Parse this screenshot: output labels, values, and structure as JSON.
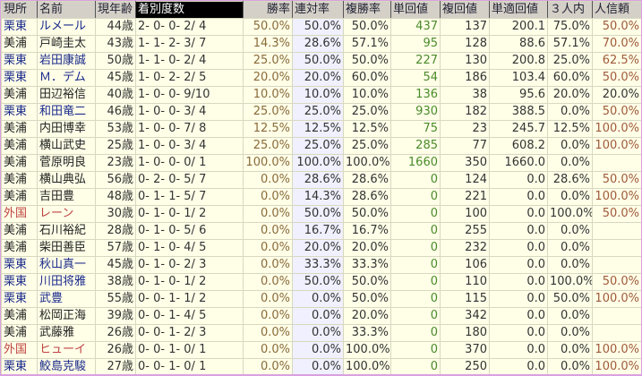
{
  "headers": [
    "現所",
    "名前",
    "現年齢",
    "着別度数",
    "勝率",
    "連対率",
    "複勝率",
    "単回値",
    "複回値",
    "単適回値",
    "３人内",
    "人信頼"
  ],
  "colors": {
    "ritto": "#1a2a8a",
    "miho": "#222222",
    "gaikoku": "#c04040",
    "header_bg": "#d4d0c8",
    "row_bg": "#ffffe8",
    "rentai_bg": "#f0f0ff"
  },
  "rows": [
    [
      "栗東",
      "ルメール",
      "44歳",
      "2- 0- 0- 2/ 4",
      "50.0%",
      "50.0%",
      "50.0%",
      "437",
      "137",
      "200.1",
      "75.0%",
      "50.0%"
    ],
    [
      "美浦",
      "戸崎圭太",
      "43歳",
      "1- 1- 2- 3/ 7",
      "14.3%",
      "28.6%",
      "57.1%",
      "95",
      "128",
      "88.6",
      "57.1%",
      "70.0%"
    ],
    [
      "栗東",
      "岩田康誠",
      "50歳",
      "1- 1- 0- 2/ 4",
      "25.0%",
      "50.0%",
      "50.0%",
      "227",
      "130",
      "200.8",
      "25.0%",
      "62.5%"
    ],
    [
      "栗東",
      "Ｍ．デム",
      "45歳",
      "1- 0- 2- 2/ 5",
      "20.0%",
      "20.0%",
      "60.0%",
      "54",
      "186",
      "103.4",
      "60.0%",
      "50.0%"
    ],
    [
      "美浦",
      "田辺裕信",
      "40歳",
      "1- 0- 0- 9/10",
      "10.0%",
      "10.0%",
      "10.0%",
      "136",
      "38",
      "95.6",
      "20.0%",
      "20.0%"
    ],
    [
      "栗東",
      "和田竜二",
      "46歳",
      "1- 0- 0- 3/ 4",
      "25.0%",
      "25.0%",
      "25.0%",
      "930",
      "182",
      "388.5",
      "0.0%",
      "50.0%"
    ],
    [
      "美浦",
      "内田博幸",
      "53歳",
      "1- 0- 0- 7/ 8",
      "12.5%",
      "12.5%",
      "12.5%",
      "75",
      "23",
      "245.7",
      "12.5%",
      "100.0%"
    ],
    [
      "美浦",
      "横山武史",
      "25歳",
      "1- 0- 0- 3/ 4",
      "25.0%",
      "25.0%",
      "25.0%",
      "285",
      "77",
      "608.2",
      "0.0%",
      "100.0%"
    ],
    [
      "美浦",
      "菅原明良",
      "23歳",
      "1- 0- 0- 0/ 1",
      "100.0%",
      "100.0%",
      "100.0%",
      "1660",
      "350",
      "1660.0",
      "0.0%",
      ""
    ],
    [
      "美浦",
      "横山典弘",
      "56歳",
      "0- 2- 0- 5/ 7",
      "0.0%",
      "28.6%",
      "28.6%",
      "0",
      "124",
      "0.0",
      "28.6%",
      "50.0%"
    ],
    [
      "美浦",
      "吉田豊",
      "48歳",
      "0- 1- 1- 5/ 7",
      "0.0%",
      "14.3%",
      "28.6%",
      "0",
      "221",
      "0.0",
      "0.0%",
      "100.0%"
    ],
    [
      "外国",
      "レーン",
      "30歳",
      "0- 1- 0- 1/ 2",
      "0.0%",
      "50.0%",
      "50.0%",
      "0",
      "100",
      "0.0",
      "100.0%",
      "50.0%"
    ],
    [
      "美浦",
      "石川裕紀",
      "28歳",
      "0- 1- 0- 5/ 6",
      "0.0%",
      "16.7%",
      "16.7%",
      "0",
      "255",
      "0.0",
      "0.0%",
      ""
    ],
    [
      "美浦",
      "柴田善臣",
      "57歳",
      "0- 1- 0- 4/ 5",
      "0.0%",
      "20.0%",
      "20.0%",
      "0",
      "232",
      "0.0",
      "0.0%",
      ""
    ],
    [
      "栗東",
      "秋山真一",
      "45歳",
      "0- 1- 0- 2/ 3",
      "0.0%",
      "33.3%",
      "33.3%",
      "0",
      "106",
      "0.0",
      "0.0%",
      ""
    ],
    [
      "栗東",
      "川田将雅",
      "38歳",
      "0- 1- 0- 1/ 2",
      "0.0%",
      "50.0%",
      "50.0%",
      "0",
      "110",
      "0.0",
      "100.0%",
      "50.0%"
    ],
    [
      "栗東",
      "武豊",
      "55歳",
      "0- 0- 1- 1/ 2",
      "0.0%",
      "0.0%",
      "50.0%",
      "0",
      "115",
      "0.0",
      "50.0%",
      "100.0%"
    ],
    [
      "美浦",
      "松岡正海",
      "39歳",
      "0- 0- 1- 4/ 5",
      "0.0%",
      "0.0%",
      "20.0%",
      "0",
      "342",
      "0.0",
      "0.0%",
      ""
    ],
    [
      "美浦",
      "武藤雅",
      "26歳",
      "0- 0- 1- 2/ 3",
      "0.0%",
      "0.0%",
      "33.3%",
      "0",
      "180",
      "0.0",
      "0.0%",
      ""
    ],
    [
      "外国",
      "ヒューイ",
      "26歳",
      "0- 0- 1- 0/ 1",
      "0.0%",
      "0.0%",
      "100.0%",
      "0",
      "370",
      "0.0",
      "0.0%",
      "100.0%"
    ],
    [
      "栗東",
      "鮫島克駿",
      "27歳",
      "0- 0- 1- 0/ 1",
      "0.0%",
      "0.0%",
      "100.0%",
      "0",
      "250",
      "0.0",
      "0.0%",
      "100.0%"
    ]
  ]
}
